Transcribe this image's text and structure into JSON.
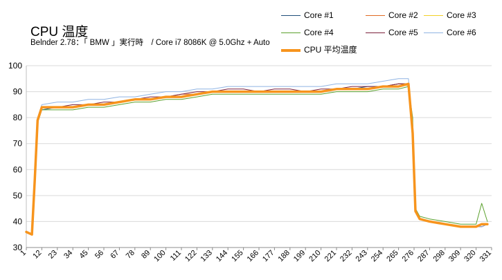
{
  "title": "CPU 温度",
  "subtitle": "Belnder 2.78：「 BMW 」実行時　/ Core i7 8086K @ 5.0Ghz + Auto",
  "chart_data": {
    "type": "line",
    "title": "CPU 温度",
    "subtitle": "Belnder 2.78：「 BMW 」実行時　/ Core i7 8086K @ 5.0Ghz + Auto",
    "xlabel": "",
    "ylabel": "",
    "xlim": [
      1,
      331
    ],
    "ylim": [
      30,
      100
    ],
    "yticks": [
      30,
      40,
      50,
      60,
      70,
      80,
      90,
      100
    ],
    "xticks": [
      1,
      12,
      23,
      34,
      45,
      56,
      67,
      78,
      89,
      100,
      111,
      122,
      133,
      144,
      155,
      166,
      177,
      188,
      199,
      210,
      221,
      232,
      243,
      254,
      265,
      276,
      287,
      298,
      309,
      320,
      331
    ],
    "grid": true,
    "legend_position": "top-right",
    "x": [
      1,
      5,
      7,
      9,
      12,
      23,
      34,
      45,
      56,
      67,
      78,
      89,
      100,
      111,
      122,
      133,
      144,
      155,
      166,
      177,
      188,
      199,
      210,
      221,
      232,
      243,
      254,
      265,
      272,
      275,
      277,
      280,
      287,
      298,
      309,
      320,
      324,
      328
    ],
    "series": [
      {
        "name": "Core #1",
        "color": "#1f4e79",
        "width": 1,
        "values": [
          36,
          35,
          55,
          78,
          83,
          84,
          84,
          85,
          85,
          86,
          87,
          87,
          88,
          88,
          89,
          90,
          90,
          90,
          90,
          90,
          90,
          90,
          90,
          91,
          91,
          92,
          92,
          93,
          93,
          74,
          44,
          41,
          40,
          39,
          38,
          38,
          38,
          39
        ]
      },
      {
        "name": "Core #2",
        "color": "#e06a22",
        "width": 1,
        "values": [
          36,
          35,
          56,
          79,
          84,
          84,
          84,
          85,
          85,
          86,
          87,
          87,
          88,
          89,
          89,
          90,
          90,
          90,
          90,
          90,
          90,
          90,
          90,
          91,
          91,
          91,
          92,
          93,
          93,
          73,
          44,
          41,
          40,
          39,
          38,
          38,
          38,
          39
        ]
      },
      {
        "name": "Core #3",
        "color": "#f2d024",
        "width": 1,
        "values": [
          36,
          35,
          56,
          79,
          84,
          84,
          84,
          85,
          85,
          86,
          87,
          87,
          88,
          88,
          89,
          90,
          90,
          90,
          90,
          90,
          90,
          90,
          90,
          91,
          91,
          91,
          92,
          92,
          93,
          73,
          44,
          41,
          40,
          39,
          38,
          38,
          39,
          39
        ]
      },
      {
        "name": "Core #4",
        "color": "#5aa02c",
        "width": 1,
        "values": [
          36,
          35,
          55,
          78,
          83,
          83,
          83,
          84,
          84,
          85,
          86,
          86,
          87,
          87,
          88,
          89,
          89,
          89,
          89,
          89,
          89,
          89,
          89,
          90,
          90,
          90,
          91,
          91,
          92,
          80,
          45,
          42,
          41,
          40,
          39,
          39,
          47,
          40
        ]
      },
      {
        "name": "Core #5",
        "color": "#7b1f3a",
        "width": 1,
        "values": [
          36,
          35,
          56,
          79,
          84,
          84,
          85,
          85,
          86,
          86,
          87,
          88,
          88,
          89,
          90,
          90,
          91,
          91,
          90,
          91,
          91,
          90,
          91,
          91,
          92,
          92,
          92,
          93,
          93,
          73,
          44,
          41,
          40,
          39,
          38,
          38,
          38,
          39
        ]
      },
      {
        "name": "Core #6",
        "color": "#8fb4e3",
        "width": 1,
        "values": [
          36,
          35,
          57,
          80,
          85,
          86,
          86,
          87,
          87,
          88,
          88,
          89,
          90,
          90,
          91,
          91,
          92,
          92,
          92,
          92,
          92,
          92,
          92,
          93,
          93,
          93,
          94,
          95,
          95,
          74,
          44,
          41,
          40,
          39,
          38,
          38,
          38,
          39
        ]
      },
      {
        "name": "CPU 平均温度",
        "color": "#f7941d",
        "width": 3.5,
        "values": [
          36,
          35,
          56,
          79,
          84,
          84,
          84,
          85,
          85,
          86,
          87,
          87,
          88,
          88,
          89,
          90,
          90,
          90,
          90,
          90,
          90,
          90,
          90,
          91,
          91,
          91,
          92,
          92,
          93,
          74,
          44,
          41,
          40,
          39,
          38,
          38,
          39,
          39
        ]
      }
    ]
  }
}
